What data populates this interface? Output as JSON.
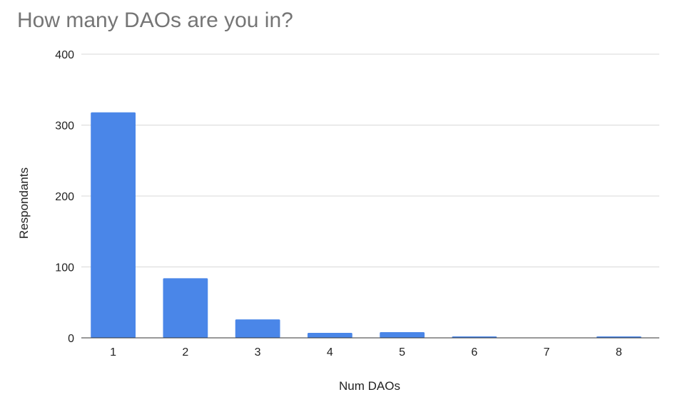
{
  "chart_data": {
    "type": "bar",
    "title": "How many DAOs are you in?",
    "xlabel": "Num DAOs",
    "ylabel": "Respondants",
    "categories": [
      "1",
      "2",
      "3",
      "4",
      "5",
      "6",
      "7",
      "8"
    ],
    "values": [
      318,
      84,
      26,
      7,
      8,
      2,
      0,
      2
    ],
    "ylim": [
      0,
      400
    ],
    "yticks": [
      0,
      100,
      200,
      300,
      400
    ],
    "grid": true,
    "bar_color": "#4a86e8"
  }
}
